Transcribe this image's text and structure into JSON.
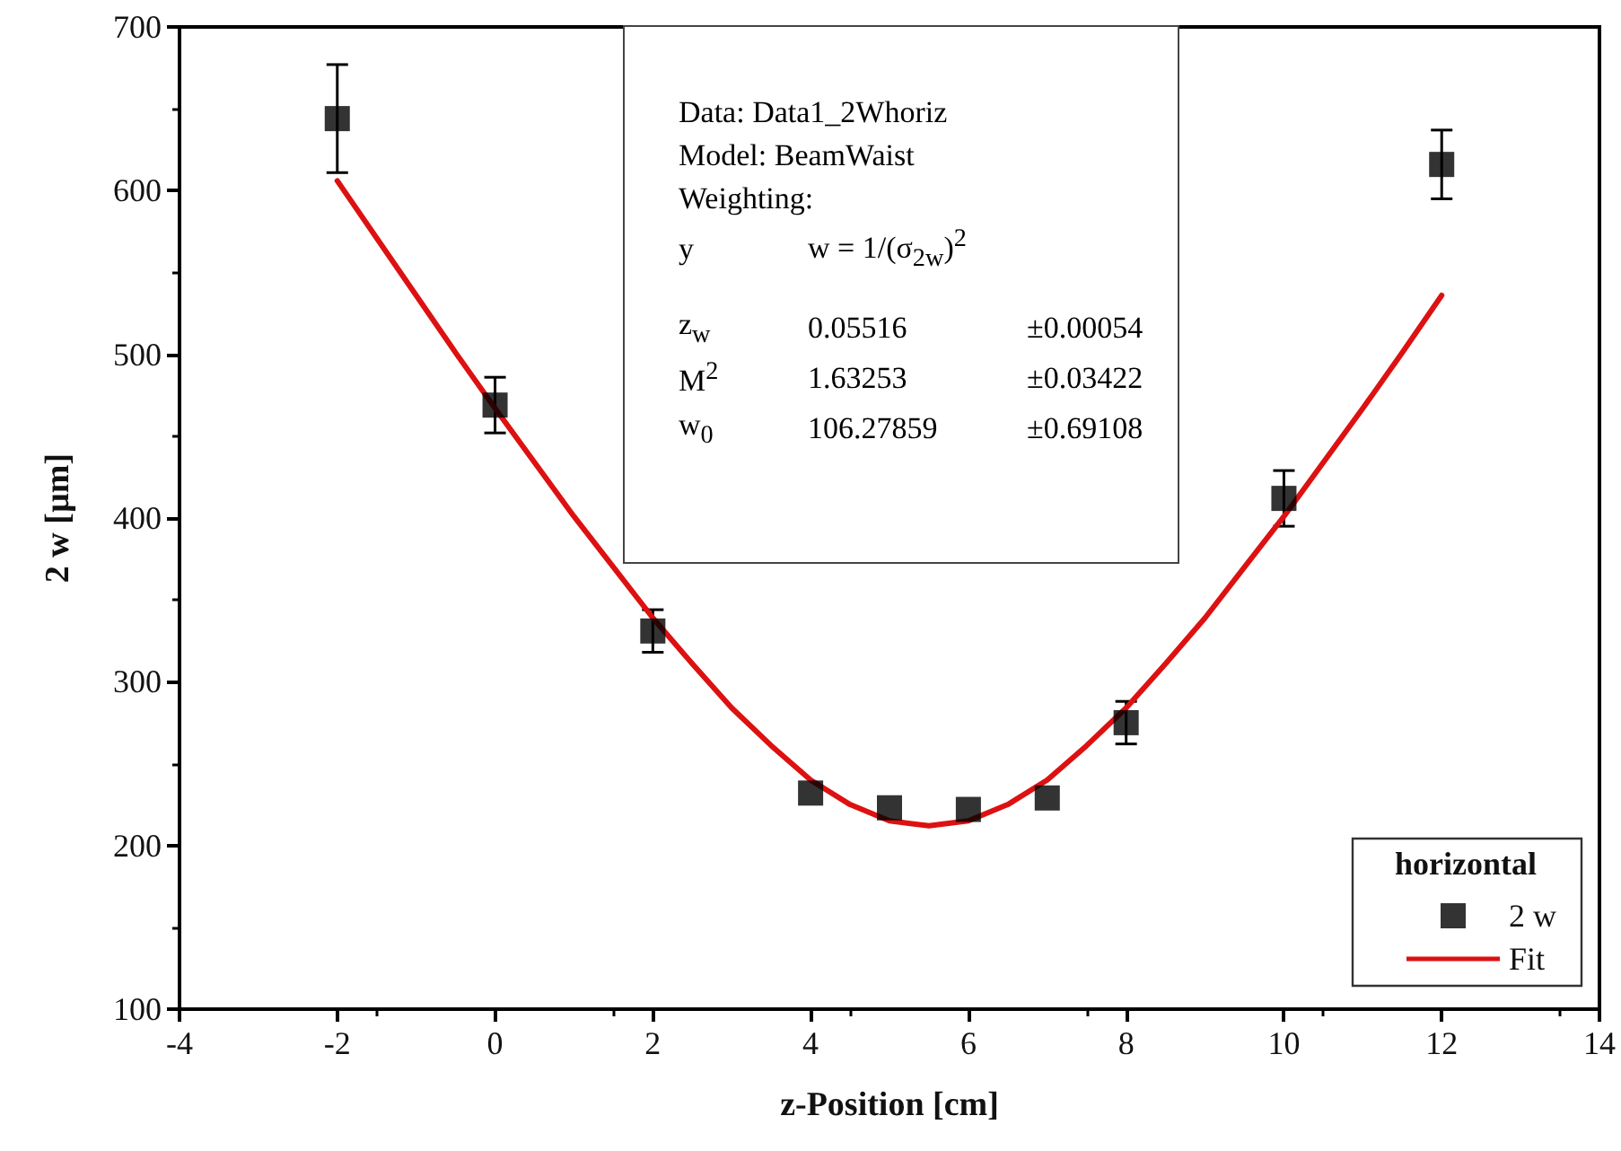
{
  "chart_data": {
    "type": "scatter",
    "xlabel": "z-Position [cm]",
    "ylabel": "2 w [µm]",
    "legend_title": "horizontal",
    "xlim": [
      -4,
      14
    ],
    "xticks": [
      -4,
      -2,
      0,
      2,
      4,
      6,
      8,
      10,
      12,
      14
    ],
    "ylim": [
      100,
      700
    ],
    "yticks": [
      100,
      200,
      300,
      400,
      500,
      600,
      700
    ],
    "grid": false,
    "legend": "bottom right",
    "series": [
      {
        "name": "2 w",
        "color": "#000000",
        "marker": "square",
        "x": [
          -2,
          0,
          2,
          4,
          5,
          6,
          7,
          8,
          10,
          12
        ],
        "values": [
          644,
          469,
          331,
          232,
          223,
          222,
          229,
          275,
          412,
          616
        ],
        "errors": [
          33,
          17,
          13,
          null,
          null,
          null,
          null,
          13,
          17,
          21
        ]
      },
      {
        "name": "Fit",
        "type": "line",
        "color": "#dd1111",
        "marker": "none",
        "line_style": "solid",
        "x": [
          -2,
          -1.5,
          -1,
          -0.5,
          0,
          0.5,
          1,
          1.5,
          2,
          2.5,
          3,
          3.5,
          4,
          4.5,
          5,
          5.5,
          6,
          6.5,
          7,
          7.5,
          8,
          8.5,
          9,
          9.5,
          10,
          10.5,
          11,
          11.5,
          12
        ],
        "values": [
          606,
          571,
          536,
          501,
          467,
          434,
          401,
          370,
          339,
          311,
          284,
          261,
          240,
          225,
          215,
          212,
          215,
          225,
          240,
          261,
          284,
          311,
          339,
          370,
          401,
          434,
          467,
          501,
          536
        ]
      }
    ],
    "annotations": [
      "Data: Data1_2Whoriz",
      "Model: BeamWaist",
      "Weighting:",
      "y",
      "w = 1/(σ$_{2w}$)$^{2}$",
      "z$_{w}$",
      "0.05516",
      "±0.00054",
      "M$^{2}$",
      "1.63253",
      "±0.03422",
      "w$_{0}$",
      "106.27859",
      "±0.69108"
    ]
  }
}
